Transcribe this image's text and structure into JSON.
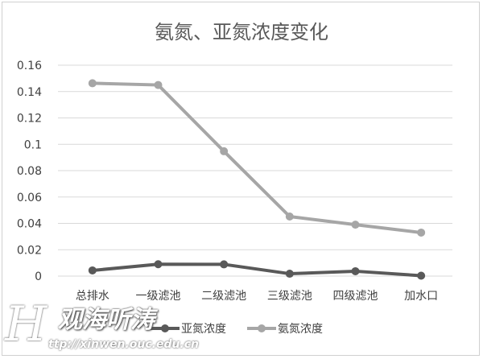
{
  "chart_data": {
    "type": "line",
    "title": "氨氮、亚氮浓度变化",
    "categories": [
      "总排水",
      "一级滤池",
      "二级滤池",
      "三级滤池",
      "四级滤池",
      "加水口"
    ],
    "series": [
      {
        "name": "亚氮浓度",
        "color": "#595959",
        "values": [
          0.0043,
          0.009,
          0.0089,
          0.0018,
          0.0037,
          0.0003
        ]
      },
      {
        "name": "氨氮浓度",
        "color": "#a6a6a6",
        "values": [
          0.1463,
          0.145,
          0.0947,
          0.0452,
          0.039,
          0.033
        ]
      }
    ],
    "yticks": [
      "0",
      "0.02",
      "0.04",
      "0.06",
      "0.08",
      "0.1",
      "0.12",
      "0.14",
      "0.16"
    ],
    "ylim": [
      0,
      0.16
    ],
    "grid": true,
    "legend": "bottom"
  },
  "watermark": {
    "text": "观海听涛",
    "url": "http://xinwen.ouc.edu.cn"
  }
}
